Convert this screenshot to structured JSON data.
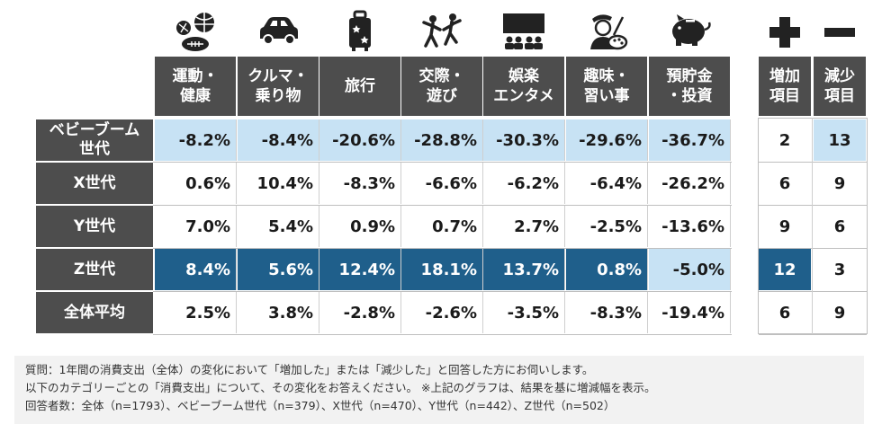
{
  "categories": [
    {
      "label_line1": "運動・",
      "label_line2": "健康",
      "icon": "sports-balls-icon"
    },
    {
      "label_line1": "クルマ・",
      "label_line2": "乗り物",
      "icon": "car-icon"
    },
    {
      "label_line1": "旅行",
      "label_line2": "",
      "icon": "suitcase-icon"
    },
    {
      "label_line1": "交際・",
      "label_line2": "遊び",
      "icon": "dancing-people-icon"
    },
    {
      "label_line1": "娯楽",
      "label_line2": "エンタメ",
      "icon": "theater-audience-icon"
    },
    {
      "label_line1": "趣味・",
      "label_line2": "習い事",
      "icon": "artist-painter-icon"
    },
    {
      "label_line1": "預貯金",
      "label_line2": "・投資",
      "icon": "piggy-bank-icon"
    }
  ],
  "count_headers": [
    {
      "line1": "増加",
      "line2": "項目",
      "icon": "plus-icon"
    },
    {
      "line1": "減少",
      "line2": "項目",
      "icon": "minus-icon"
    }
  ],
  "colors": {
    "header": "#4d4d4d",
    "highlight_light": "#c7e2f4",
    "highlight_dark": "#1f5f8b",
    "icon": "#222222"
  },
  "chart_data": {
    "type": "table",
    "columns": [
      "運動・健康",
      "クルマ・乗り物",
      "旅行",
      "交際・遊び",
      "娯楽エンタメ",
      "趣味・習い事",
      "預貯金・投資"
    ],
    "count_columns": [
      "増加項目",
      "減少項目"
    ],
    "rows": [
      {
        "label_line1": "ベビーブーム",
        "label_line2": "世代",
        "values": [
          "-8.2%",
          "-8.4%",
          "-20.6%",
          "-28.8%",
          "-30.3%",
          "-29.6%",
          "-36.7%"
        ],
        "increase": "2",
        "decrease": "13",
        "highlight": [
          "light",
          "light",
          "light",
          "light",
          "light",
          "light",
          "light"
        ],
        "count_highlight": [
          "none",
          "light"
        ]
      },
      {
        "label_line1": "X世代",
        "label_line2": "",
        "values": [
          "0.6%",
          "10.4%",
          "-8.3%",
          "-6.6%",
          "-6.2%",
          "-6.4%",
          "-26.2%"
        ],
        "increase": "6",
        "decrease": "9",
        "highlight": [
          "none",
          "none",
          "none",
          "none",
          "none",
          "none",
          "none"
        ],
        "count_highlight": [
          "none",
          "none"
        ]
      },
      {
        "label_line1": "Y世代",
        "label_line2": "",
        "values": [
          "7.0%",
          "5.4%",
          "0.9%",
          "0.7%",
          "2.7%",
          "-2.5%",
          "-13.6%"
        ],
        "increase": "9",
        "decrease": "6",
        "highlight": [
          "none",
          "none",
          "none",
          "none",
          "none",
          "none",
          "none"
        ],
        "count_highlight": [
          "none",
          "none"
        ]
      },
      {
        "label_line1": "Z世代",
        "label_line2": "",
        "values": [
          "8.4%",
          "5.6%",
          "12.4%",
          "18.1%",
          "13.7%",
          "0.8%",
          "-5.0%"
        ],
        "increase": "12",
        "decrease": "3",
        "highlight": [
          "dark",
          "dark",
          "dark",
          "dark",
          "dark",
          "dark",
          "light"
        ],
        "count_highlight": [
          "dark",
          "none"
        ]
      },
      {
        "label_line1": "全体平均",
        "label_line2": "",
        "values": [
          "2.5%",
          "3.8%",
          "-2.8%",
          "-2.6%",
          "-3.5%",
          "-8.3%",
          "-19.4%"
        ],
        "increase": "6",
        "decrease": "9",
        "highlight": [
          "none",
          "none",
          "none",
          "none",
          "none",
          "none",
          "none"
        ],
        "count_highlight": [
          "none",
          "none"
        ]
      }
    ]
  },
  "notes": [
    "質問：1年間の消費支出（全体）の変化において「増加した」または「減少した」と回答した方にお伺いします。",
    "以下のカテゴリーごとの「消費支出」について、その変化をお答えください。 ※上記のグラフは、結果を基に増減幅を表示。",
    "回答者数：全体（n=1793）、ベビーブーム世代（n=379）、X世代（n=470）、Y世代（n=442）、Z世代（n=502）"
  ]
}
